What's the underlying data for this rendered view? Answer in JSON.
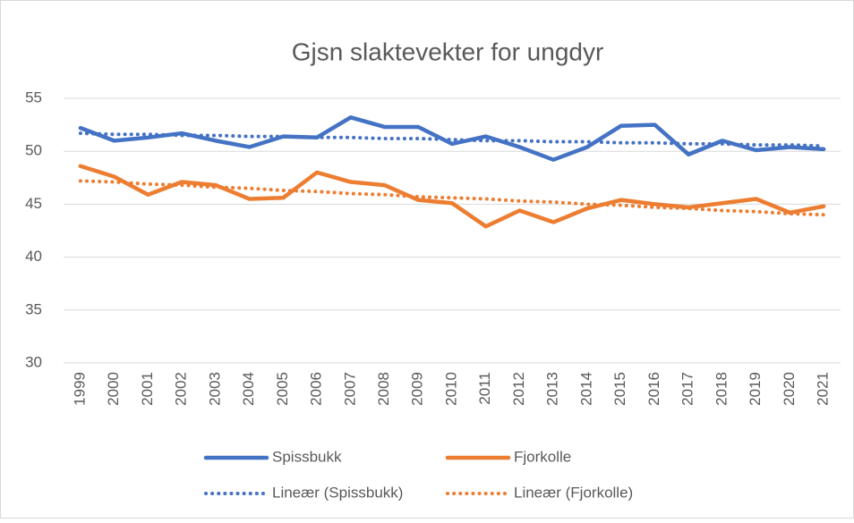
{
  "chart_data": {
    "type": "line",
    "title": "Gjsn slaktevekter for ungdyr",
    "categories": [
      "1999",
      "2000",
      "2001",
      "2002",
      "2003",
      "2004",
      "2005",
      "2006",
      "2007",
      "2008",
      "2009",
      "2010",
      "2011",
      "2012",
      "2013",
      "2014",
      "2015",
      "2016",
      "2017",
      "2018",
      "2019",
      "2020",
      "2021"
    ],
    "series": [
      {
        "name": "Spissbukk",
        "color": "#4472c4",
        "style": "solid",
        "values": [
          52.2,
          51.0,
          51.3,
          51.7,
          51.0,
          50.4,
          51.4,
          51.3,
          53.2,
          52.3,
          52.3,
          50.7,
          51.4,
          50.4,
          49.2,
          50.4,
          52.4,
          52.5,
          49.7,
          51.0,
          50.1,
          50.4,
          50.2
        ]
      },
      {
        "name": "Fjorkolle",
        "color": "#ed7d31",
        "style": "solid",
        "values": [
          48.6,
          47.6,
          45.9,
          47.1,
          46.8,
          45.5,
          45.6,
          48.0,
          47.1,
          46.8,
          45.4,
          45.1,
          42.9,
          44.4,
          43.3,
          44.6,
          45.4,
          45.0,
          44.7,
          45.1,
          45.5,
          44.2,
          44.8
        ]
      },
      {
        "name": "Lineær (Spissbukk)",
        "color": "#4472c4",
        "style": "dotted",
        "values": [
          51.7,
          51.6,
          51.6,
          51.5,
          51.5,
          51.4,
          51.4,
          51.3,
          51.3,
          51.2,
          51.2,
          51.1,
          51.0,
          51.0,
          50.9,
          50.9,
          50.8,
          50.8,
          50.7,
          50.7,
          50.6,
          50.6,
          50.5
        ]
      },
      {
        "name": "Lineær (Fjorkolle)",
        "color": "#ed7d31",
        "style": "dotted",
        "values": [
          47.2,
          47.1,
          46.9,
          46.8,
          46.6,
          46.5,
          46.3,
          46.2,
          46.0,
          45.9,
          45.7,
          45.6,
          45.5,
          45.3,
          45.2,
          45.0,
          44.9,
          44.7,
          44.6,
          44.4,
          44.3,
          44.1,
          44.0
        ]
      }
    ],
    "ylim": [
      30,
      55
    ],
    "yticks": [
      30,
      35,
      40,
      45,
      50,
      55
    ],
    "grid": true,
    "legend": "bottom"
  }
}
